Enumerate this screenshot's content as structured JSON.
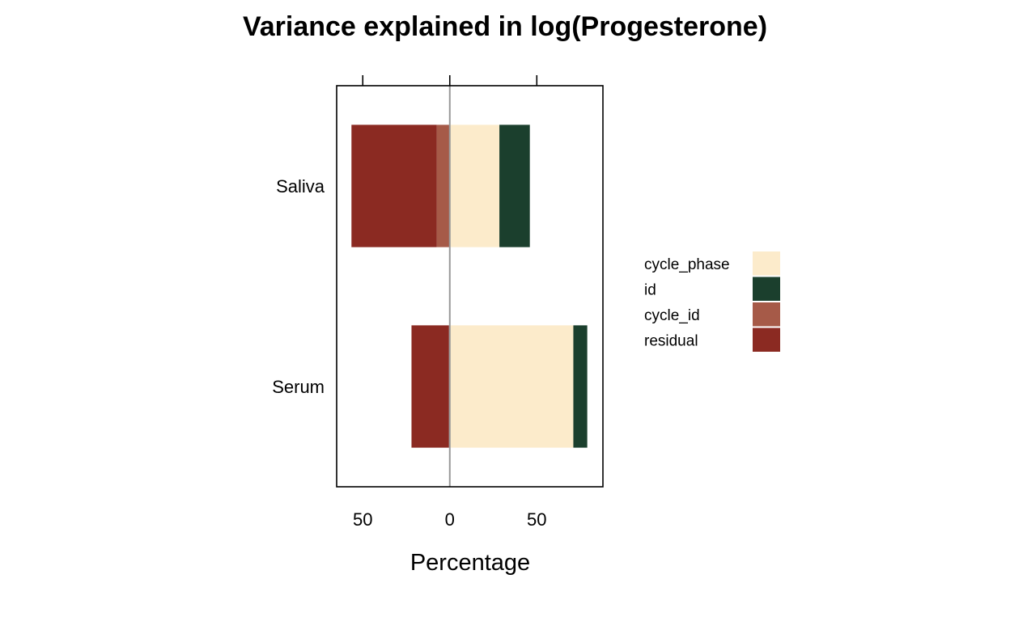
{
  "chart_data": {
    "type": "bar",
    "orientation": "horizontal",
    "stacked": true,
    "diverging": true,
    "title": "Variance explained in log(Progesterone)",
    "xlabel": "Percentage",
    "ylabel": "",
    "xlim": [
      -65,
      88
    ],
    "x_ticks": [
      -50,
      0,
      50
    ],
    "x_tick_labels": [
      "50",
      "0",
      "50"
    ],
    "reference_line": 0,
    "grid": false,
    "categories": [
      "Saliva",
      "Serum"
    ],
    "legend_position": "right",
    "series": [
      {
        "name": "cycle_phase",
        "color": "#FCEBCB",
        "side": "positive",
        "values": [
          28.5,
          71
        ]
      },
      {
        "name": "id",
        "color": "#1B3F2D",
        "side": "positive",
        "values": [
          17.5,
          8
        ]
      },
      {
        "name": "cycle_id",
        "color": "#A65A48",
        "side": "negative",
        "values": [
          7.5,
          0.5
        ]
      },
      {
        "name": "residual",
        "color": "#8B2A22",
        "side": "negative",
        "values": [
          49,
          21.5
        ]
      }
    ]
  }
}
